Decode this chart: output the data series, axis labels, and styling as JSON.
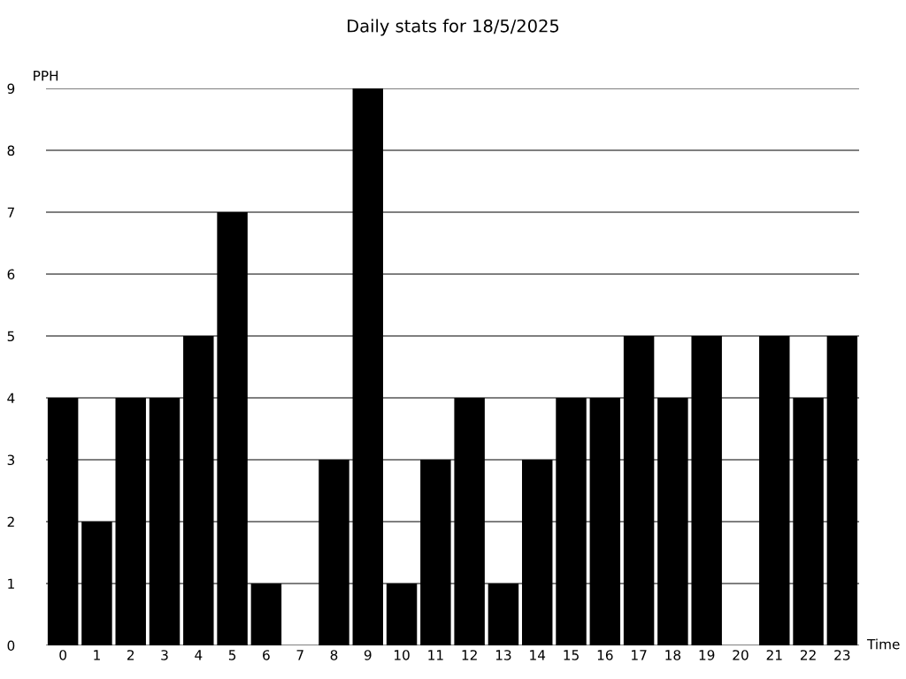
{
  "chart_data": {
    "type": "bar",
    "title": "Daily stats for 18/5/2025",
    "xlabel": "Time",
    "ylabel": "PPH",
    "categories": [
      "0",
      "1",
      "2",
      "3",
      "4",
      "5",
      "6",
      "7",
      "8",
      "9",
      "10",
      "11",
      "12",
      "13",
      "14",
      "15",
      "16",
      "17",
      "18",
      "19",
      "20",
      "21",
      "22",
      "23"
    ],
    "values": [
      4,
      2,
      4,
      4,
      5,
      7,
      1,
      0,
      3,
      9,
      1,
      3,
      4,
      1,
      3,
      4,
      4,
      5,
      4,
      5,
      0,
      5,
      4,
      5
    ],
    "color": "#000000",
    "ylim": [
      0,
      9
    ],
    "yticks": [
      0,
      1,
      2,
      3,
      4,
      5,
      6,
      7,
      8,
      9
    ],
    "grid": "y",
    "legend": false
  }
}
